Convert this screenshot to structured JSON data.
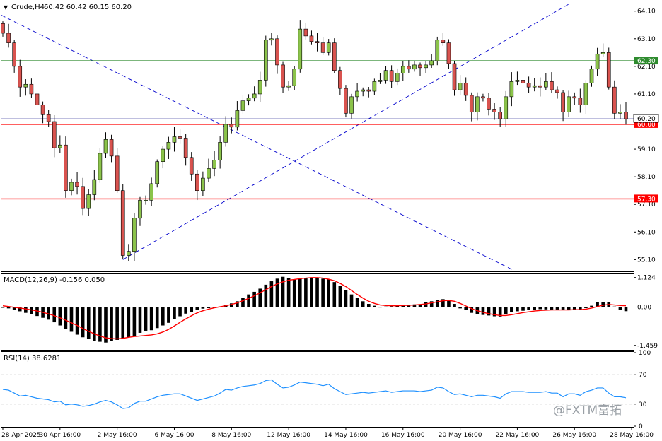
{
  "header": {
    "symbol": "Crude,H4",
    "ohlc": "60.42 60.42 60.15 60.20"
  },
  "watermark": "@FXTM富拓",
  "colors": {
    "bull": "#8bc34a",
    "bear": "#d9534f",
    "wick": "#000000",
    "resistance": "#2e8b2e",
    "support": "#ff0000",
    "price": "#000080",
    "trend": "#0000cd",
    "macd_signal": "#ff0000",
    "rsi": "#1e90ff"
  },
  "chart_data": [
    {
      "type": "candlestick",
      "title": "Crude,H4",
      "ylim": [
        54.7,
        64.4
      ],
      "yticks": [
        "64.10",
        "63.10",
        "62.10",
        "61.10",
        "60.10",
        "59.10",
        "58.10",
        "57.10",
        "56.10",
        "55.10"
      ],
      "xticks": [
        "28 Apr 2025",
        "30 Apr 16:00",
        "2 May 16:00",
        "6 May 16:00",
        "8 May 16:00",
        "12 May 16:00",
        "14 May 16:00",
        "16 May 16:00",
        "20 May 16:00",
        "22 May 16:00",
        "26 May 16:00",
        "28 May 16:00"
      ],
      "close": [
        63.3,
        62.95,
        62.1,
        61.35,
        61.45,
        61.1,
        60.7,
        60.35,
        60.1,
        59.15,
        59.25,
        57.6,
        57.9,
        57.75,
        56.95,
        57.45,
        58.0,
        58.95,
        59.45,
        58.85,
        57.6,
        55.25,
        55.4,
        56.6,
        57.25,
        57.25,
        57.85,
        58.65,
        59.1,
        59.35,
        59.55,
        59.5,
        58.8,
        58.2,
        57.6,
        58.05,
        58.4,
        58.7,
        59.35,
        60.0,
        59.9,
        60.5,
        60.85,
        60.95,
        61.1,
        61.6,
        63.05,
        63.1,
        62.15,
        61.35,
        61.4,
        62.0,
        63.45,
        63.2,
        63.0,
        62.95,
        62.6,
        62.95,
        61.95,
        61.3,
        60.4,
        61.0,
        61.2,
        61.25,
        61.2,
        61.55,
        61.6,
        61.95,
        61.55,
        61.85,
        62.1,
        62.0,
        62.15,
        62.05,
        62.15,
        62.3,
        63.05,
        62.95,
        62.2,
        61.25,
        61.5,
        61.05,
        60.45,
        61.0,
        60.95,
        60.55,
        60.45,
        60.2,
        61.0,
        61.55,
        61.6,
        61.5,
        61.35,
        61.4,
        61.35,
        61.55,
        61.25,
        61.15,
        60.45,
        61.0,
        60.95,
        60.7,
        61.5,
        62.0,
        62.55,
        62.6,
        61.35,
        60.4,
        60.45,
        60.2
      ],
      "support_levels": [
        "60.00",
        "57.30"
      ],
      "resistance_levels": [
        "62.30"
      ],
      "last_price": "60.20"
    },
    {
      "type": "line",
      "title": "MACD(12,26,9) -0.156 0.050",
      "ylim": [
        -1.6,
        1.25
      ],
      "yticks": [
        "1.124",
        "0.00",
        "-1.459"
      ],
      "series": [
        {
          "name": "MACD",
          "values": [
            0.0,
            -0.05,
            -0.1,
            -0.16,
            -0.22,
            -0.28,
            -0.34,
            -0.41,
            -0.48,
            -0.58,
            -0.7,
            -0.82,
            -0.94,
            -1.05,
            -1.15,
            -1.22,
            -1.28,
            -1.32,
            -1.35,
            -1.3,
            -1.25,
            -1.2,
            -1.15,
            -1.1,
            -0.98,
            -0.9,
            -0.88,
            -0.8,
            -0.7,
            -0.6,
            -0.45,
            -0.35,
            -0.25,
            -0.18,
            -0.12,
            -0.06,
            -0.04,
            -0.02,
            0.02,
            0.08,
            0.14,
            0.22,
            0.35,
            0.48,
            0.58,
            0.7,
            0.85,
            0.98,
            1.08,
            1.15,
            1.1,
            1.05,
            1.08,
            1.1,
            1.12,
            1.1,
            1.08,
            1.05,
            0.95,
            0.82,
            0.65,
            0.48,
            0.35,
            0.22,
            0.12,
            0.05,
            0.01,
            0.02,
            0.03,
            0.05,
            0.06,
            0.06,
            0.1,
            0.1,
            0.18,
            0.22,
            0.28,
            0.3,
            0.24,
            0.12,
            -0.05,
            -0.12,
            -0.22,
            -0.26,
            -0.3,
            -0.32,
            -0.35,
            -0.36,
            -0.28,
            -0.2,
            -0.16,
            -0.14,
            -0.12,
            -0.1,
            -0.08,
            -0.09,
            -0.1,
            -0.12,
            -0.12,
            -0.1,
            -0.1,
            -0.09,
            -0.04,
            0.05,
            0.18,
            0.2,
            0.18,
            0.02,
            -0.1,
            -0.156
          ]
        },
        {
          "name": "Signal",
          "values": [
            0.05,
            0.02,
            -0.01,
            -0.04,
            -0.07,
            -0.11,
            -0.15,
            -0.2,
            -0.26,
            -0.33,
            -0.41,
            -0.5,
            -0.6,
            -0.7,
            -0.82,
            -0.92,
            -1.02,
            -1.1,
            -1.17,
            -1.2,
            -1.21,
            -1.19,
            -1.15,
            -1.12,
            -1.1,
            -1.08,
            -1.06,
            -1.02,
            -0.95,
            -0.85,
            -0.72,
            -0.58,
            -0.45,
            -0.33,
            -0.22,
            -0.14,
            -0.08,
            -0.03,
            0.01,
            0.05,
            0.1,
            0.16,
            0.24,
            0.33,
            0.43,
            0.54,
            0.66,
            0.78,
            0.88,
            0.96,
            1.02,
            1.05,
            1.08,
            1.1,
            1.12,
            1.12,
            1.1,
            1.06,
            1.0,
            0.9,
            0.78,
            0.63,
            0.48,
            0.34,
            0.22,
            0.14,
            0.08,
            0.06,
            0.05,
            0.05,
            0.06,
            0.07,
            0.08,
            0.1,
            0.12,
            0.16,
            0.2,
            0.24,
            0.25,
            0.22,
            0.14,
            0.04,
            -0.06,
            -0.14,
            -0.2,
            -0.25,
            -0.29,
            -0.32,
            -0.32,
            -0.29,
            -0.25,
            -0.21,
            -0.18,
            -0.15,
            -0.13,
            -0.12,
            -0.11,
            -0.11,
            -0.11,
            -0.11,
            -0.1,
            -0.1,
            -0.08,
            -0.04,
            0.02,
            0.07,
            0.1,
            0.08,
            0.06,
            0.05
          ]
        }
      ]
    },
    {
      "type": "line",
      "title": "RSI(14) 38.6281",
      "ylim": [
        0,
        100
      ],
      "yticks": [
        "100",
        "70",
        "30",
        "0"
      ],
      "series": [
        {
          "name": "RSI",
          "values": [
            50,
            49,
            45,
            41,
            42,
            40,
            38,
            37,
            36,
            33,
            34,
            29,
            30,
            29,
            27,
            28,
            30,
            33,
            35,
            33,
            29,
            24,
            25,
            31,
            34,
            34,
            37,
            40,
            42,
            43,
            44,
            44,
            41,
            38,
            35,
            37,
            39,
            41,
            45,
            50,
            49,
            52,
            54,
            55,
            56,
            58,
            62,
            63,
            57,
            52,
            53,
            56,
            60,
            59,
            58,
            57,
            55,
            57,
            51,
            47,
            43,
            44,
            45,
            46,
            45,
            46,
            47,
            48,
            46,
            47,
            48,
            48,
            48,
            47,
            48,
            49,
            53,
            52,
            47,
            43,
            44,
            42,
            40,
            42,
            42,
            41,
            40,
            38,
            44,
            47,
            47,
            47,
            46,
            46,
            46,
            47,
            45,
            45,
            40,
            44,
            44,
            42,
            47,
            49,
            52,
            52,
            45,
            40,
            40,
            38.6281
          ]
        }
      ]
    }
  ]
}
